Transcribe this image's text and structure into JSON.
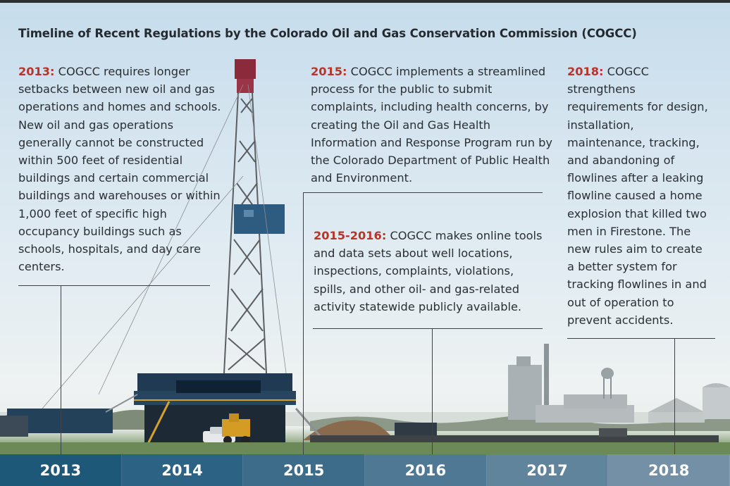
{
  "title": "Timeline of Recent Regulations by the Colorado Oil and Gas Conservation Commission (COGCC)",
  "entries": [
    {
      "year_label": "2013:",
      "text": " COGCC requires longer setbacks between new oil and gas operations and homes and schools. New oil and gas operations generally cannot be constructed within 500 feet of residential buildings and certain commercial buildings and warehouses or within 1,000 feet of specific high occupancy buildings such as schools, hospitals, and day care centers."
    },
    {
      "year_label": "2015:",
      "text": " COGCC implements a streamlined process for the public to submit complaints, including health concerns, by creating the Oil and Gas Health Information and Response Program run by the Colorado Department of Public Health and Environment."
    },
    {
      "year_label": "2015-2016:",
      "text": " COGCC makes online tools and data sets about well locations, inspections, complaints, violations, spills, and other oil- and gas-related activity statewide publicly available."
    },
    {
      "year_label": "2018:",
      "text": " COGCC strengthens requirements for design, installation, maintenance, tracking, and abandoning of flowlines after a leaking flowline caused a home explosion that killed two men in Firestone. The new rules aim to create a better system for tracking flowlines in and out of operation to prevent accidents."
    }
  ],
  "timeline": {
    "years": [
      "2013",
      "2014",
      "2015",
      "2016",
      "2017",
      "2018"
    ],
    "colors": [
      "#1d5878",
      "#2c6283",
      "#3d6c8a",
      "#4f7894",
      "#61849d",
      "#7390a7"
    ]
  },
  "colors": {
    "accent": "#b8332a",
    "text": "#2a2f34"
  }
}
